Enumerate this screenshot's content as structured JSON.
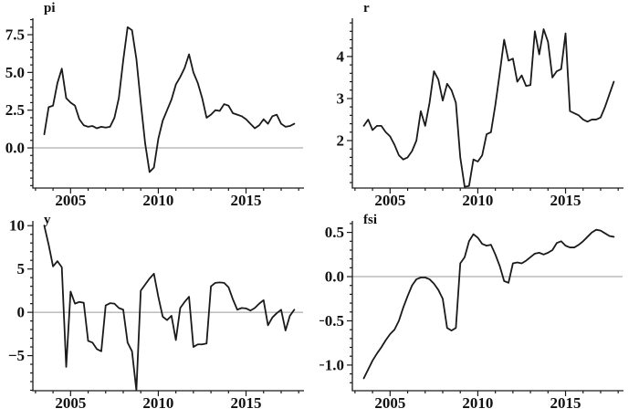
{
  "figure": {
    "background": "#ffffff",
    "text_color": "#111111",
    "panel_titles": [
      "pi",
      "r",
      "y",
      "fsi"
    ]
  },
  "chart_data": [
    {
      "type": "line",
      "title": "pi",
      "xlabel": "",
      "ylabel": "",
      "x_start": 2003.5,
      "x_step": 0.25,
      "values": [
        0.9,
        2.7,
        2.8,
        4.3,
        5.25,
        3.3,
        3.0,
        2.8,
        1.9,
        1.5,
        1.4,
        1.45,
        1.3,
        1.4,
        1.35,
        1.4,
        2.0,
        3.3,
        5.8,
        8.0,
        7.8,
        5.9,
        3.0,
        0.3,
        -1.6,
        -1.3,
        0.6,
        1.8,
        2.5,
        3.2,
        4.2,
        4.7,
        5.3,
        6.2,
        5.0,
        4.3,
        3.3,
        2.0,
        2.2,
        2.5,
        2.45,
        2.9,
        2.8,
        2.3,
        2.2,
        2.1,
        1.9,
        1.6,
        1.3,
        1.5,
        1.9,
        1.6,
        2.1,
        2.2,
        1.6,
        1.4,
        1.45,
        1.6
      ],
      "xlim": [
        2002.85,
        2018.25
      ],
      "ylim": [
        -2.66,
        8.59
      ],
      "xticks": [
        2005,
        2010,
        2015
      ],
      "xtick_labels": [
        "2005",
        "2010",
        "2015"
      ],
      "x_minor_step": 1,
      "yticks": [
        0,
        2.5,
        5,
        7.5
      ],
      "ytick_labels": [
        "0.0",
        "2.5",
        "5.0",
        "7.5"
      ],
      "y_minor_step": 0.5,
      "zero_line": true,
      "line_color": "#1a1a1a",
      "zero_line_color": "#999999",
      "axis_color": "#1a1a1a",
      "grid": false,
      "legend": "none"
    },
    {
      "type": "line",
      "title": "r",
      "xlabel": "",
      "ylabel": "",
      "x_start": 2003.5,
      "x_step": 0.25,
      "values": [
        2.35,
        2.5,
        2.25,
        2.35,
        2.35,
        2.2,
        2.1,
        1.9,
        1.65,
        1.55,
        1.6,
        1.75,
        2.0,
        2.7,
        2.35,
        2.9,
        3.65,
        3.45,
        2.95,
        3.35,
        3.2,
        2.9,
        1.6,
        0.9,
        0.92,
        1.55,
        1.5,
        1.65,
        2.15,
        2.2,
        2.85,
        3.6,
        4.4,
        3.9,
        3.95,
        3.4,
        3.55,
        3.3,
        3.32,
        4.6,
        4.05,
        4.65,
        4.35,
        3.5,
        3.65,
        3.7,
        4.55,
        2.7,
        2.65,
        2.6,
        2.5,
        2.45,
        2.5,
        2.5,
        2.55,
        2.8,
        3.1,
        3.4
      ],
      "xlim": [
        2002.85,
        2018.25
      ],
      "ylim": [
        0.87,
        4.91
      ],
      "xticks": [
        2005,
        2010,
        2015
      ],
      "xtick_labels": [
        "2005",
        "2010",
        "2015"
      ],
      "x_minor_step": 1,
      "yticks": [
        2,
        3,
        4
      ],
      "ytick_labels": [
        "2",
        "3",
        "4"
      ],
      "y_minor_step": 0.2,
      "zero_line": false,
      "line_color": "#1a1a1a",
      "zero_line_color": "#999999",
      "axis_color": "#1a1a1a",
      "grid": false,
      "legend": "none"
    },
    {
      "type": "line",
      "title": "y",
      "xlabel": "",
      "ylabel": "",
      "x_start": 2003.5,
      "x_step": 0.25,
      "values": [
        10.0,
        7.8,
        5.3,
        5.9,
        5.2,
        -6.3,
        2.4,
        1.0,
        1.2,
        1.1,
        -3.3,
        -3.5,
        -4.25,
        -4.5,
        0.8,
        1.05,
        1.0,
        0.5,
        0.3,
        -3.5,
        -4.5,
        -9.0,
        2.5,
        3.2,
        3.9,
        4.45,
        1.8,
        -0.5,
        -0.9,
        -0.4,
        -3.2,
        0.5,
        1.2,
        1.8,
        -4.0,
        -3.7,
        -3.7,
        -3.6,
        3.0,
        3.4,
        3.45,
        3.4,
        2.9,
        1.5,
        0.3,
        0.5,
        0.45,
        0.2,
        0.5,
        1.0,
        1.4,
        -1.5,
        -0.6,
        -0.1,
        0.3,
        -2.1,
        -0.4,
        0.3
      ],
      "xlim": [
        2002.85,
        2018.25
      ],
      "ylim": [
        -9.05,
        10.55
      ],
      "xticks": [
        2005,
        2010,
        2015
      ],
      "xtick_labels": [
        "2005",
        "2010",
        "2015"
      ],
      "x_minor_step": 1,
      "yticks": [
        -5,
        0,
        5,
        10
      ],
      "ytick_labels": [
        "−5",
        "0",
        "5",
        "10"
      ],
      "y_minor_step": 1,
      "zero_line": true,
      "line_color": "#1a1a1a",
      "zero_line_color": "#999999",
      "axis_color": "#1a1a1a",
      "grid": false,
      "legend": "none"
    },
    {
      "type": "line",
      "title": "fsi",
      "xlabel": "",
      "ylabel": "",
      "x_start": 2003.5,
      "x_step": 0.25,
      "values": [
        -1.15,
        -1.05,
        -0.95,
        -0.87,
        -0.8,
        -0.72,
        -0.65,
        -0.6,
        -0.5,
        -0.35,
        -0.22,
        -0.1,
        -0.03,
        -0.01,
        -0.01,
        -0.03,
        -0.08,
        -0.15,
        -0.25,
        -0.58,
        -0.61,
        -0.58,
        0.15,
        0.22,
        0.4,
        0.48,
        0.44,
        0.37,
        0.35,
        0.36,
        0.25,
        0.12,
        -0.05,
        -0.07,
        0.15,
        0.16,
        0.15,
        0.18,
        0.22,
        0.26,
        0.27,
        0.25,
        0.27,
        0.3,
        0.38,
        0.4,
        0.35,
        0.33,
        0.33,
        0.36,
        0.4,
        0.45,
        0.5,
        0.53,
        0.52,
        0.49,
        0.46,
        0.45
      ],
      "xlim": [
        2002.85,
        2018.25
      ],
      "ylim": [
        -1.29,
        0.63
      ],
      "xticks": [
        2005,
        2010,
        2015
      ],
      "xtick_labels": [
        "2005",
        "2010",
        "2015"
      ],
      "x_minor_step": 1,
      "yticks": [
        -1.0,
        -0.5,
        0.0,
        0.5
      ],
      "ytick_labels": [
        "−1.0",
        "−0.5",
        "0.0",
        "0.5"
      ],
      "y_minor_step": 0.1,
      "zero_line": true,
      "line_color": "#1a1a1a",
      "zero_line_color": "#999999",
      "axis_color": "#1a1a1a",
      "grid": false,
      "legend": "none"
    }
  ]
}
